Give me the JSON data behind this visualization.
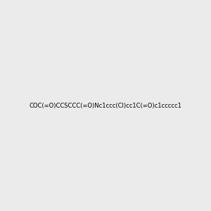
{
  "smiles": "COC(=O)CCSCCC(=O)Nc1ccc(Cl)cc1C(=O)c1ccccc1",
  "image_size": 300,
  "background_color": "#EBEBEB",
  "bond_color": "#2d2d2d",
  "atom_colors": {
    "O": "#FF0000",
    "N": "#0000FF",
    "S": "#CCCC00",
    "Cl": "#00AA00"
  },
  "title": ""
}
